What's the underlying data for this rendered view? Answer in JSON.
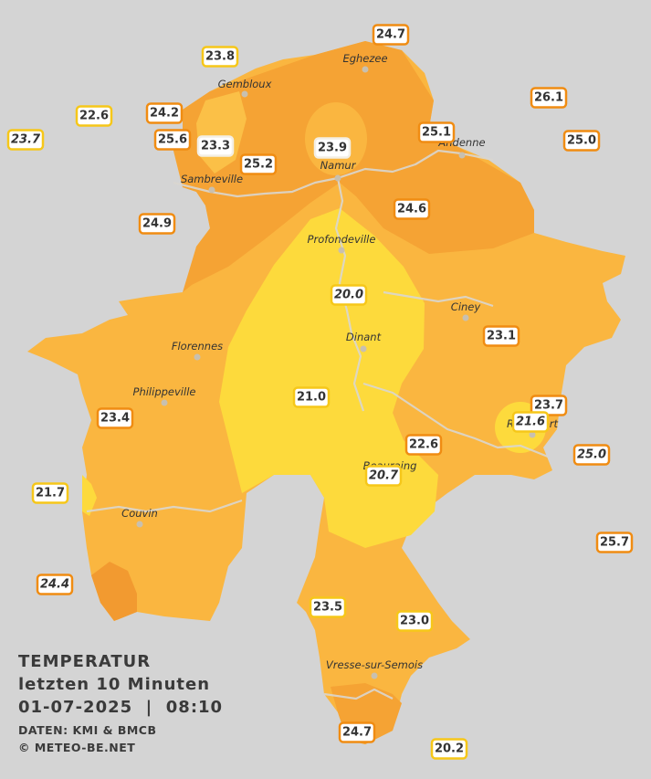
{
  "header": {
    "title": "TEMPERATUR",
    "subtitle": "letzten 10 Minuten",
    "timestamp": "01-07-2025  |  08:10",
    "source": "DATEN: KMI & BMCB",
    "credit": "© METEO-BE.NET"
  },
  "towns": [
    "Eghezee",
    "Gembloux",
    "Andenne",
    "Namur",
    "Sambreville",
    "Profondeville",
    "Ciney",
    "Florennes",
    "Dinant",
    "Philippeville",
    "Rochefort",
    "Beauraing",
    "Couvin",
    "Vresse-sur-Semois"
  ],
  "stations": [
    "24.7",
    "23.8",
    "22.6",
    "24.2",
    "23.7",
    "25.6",
    "23.3",
    "25.2",
    "23.9",
    "25.1",
    "26.1",
    "25.0",
    "24.9",
    "24.6",
    "20.0",
    "23.1",
    "21.0",
    "23.7",
    "21.6",
    "23.4",
    "22.6",
    "25.0",
    "20.7",
    "21.7",
    "25.7",
    "24.4",
    "23.5",
    "23.0",
    "24.7",
    "20.2"
  ]
}
